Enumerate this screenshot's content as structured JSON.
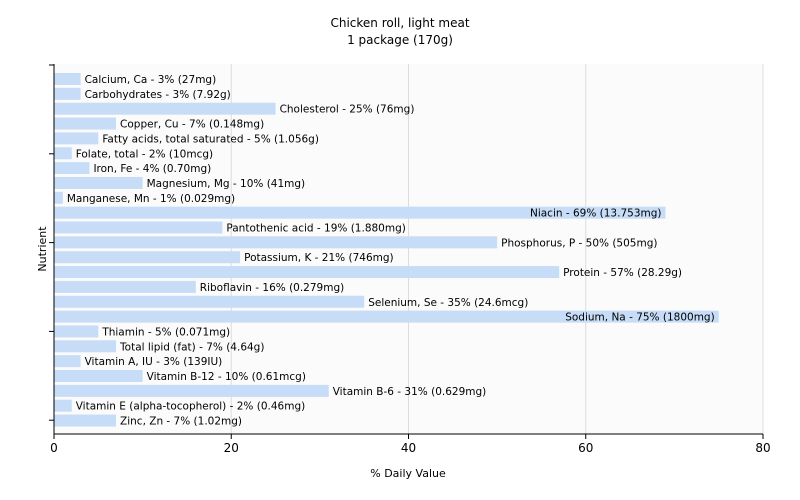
{
  "chart_data": {
    "type": "bar",
    "orientation": "horizontal",
    "title": "Chicken roll, light meat",
    "subtitle": "1 package (170g)",
    "xlabel": "% Daily Value",
    "ylabel": "Nutrient",
    "xlim": [
      0,
      80
    ],
    "xticks": [
      "0",
      "20",
      "40",
      "60",
      "80"
    ],
    "grid": true,
    "bar_color": "#c6dcf7",
    "categories": [
      "Calcium, Ca",
      "Carbohydrates",
      "Cholesterol",
      "Copper, Cu",
      "Fatty acids, total saturated",
      "Folate, total",
      "Iron, Fe",
      "Magnesium, Mg",
      "Manganese, Mn",
      "Niacin",
      "Pantothenic acid",
      "Phosphorus, P",
      "Potassium, K",
      "Protein",
      "Riboflavin",
      "Selenium, Se",
      "Sodium, Na",
      "Thiamin",
      "Total lipid (fat)",
      "Vitamin A, IU",
      "Vitamin B-12",
      "Vitamin B-6",
      "Vitamin E (alpha-tocopherol)",
      "Zinc, Zn"
    ],
    "values": [
      3,
      3,
      25,
      7,
      5,
      2,
      4,
      10,
      1,
      69,
      19,
      50,
      21,
      57,
      16,
      35,
      75,
      5,
      7,
      3,
      10,
      31,
      2,
      7
    ],
    "labels": [
      "Calcium, Ca - 3% (27mg)",
      "Carbohydrates - 3% (7.92g)",
      "Cholesterol - 25% (76mg)",
      "Copper, Cu - 7% (0.148mg)",
      "Fatty acids, total saturated - 5% (1.056g)",
      "Folate, total - 2% (10mcg)",
      "Iron, Fe - 4% (0.70mg)",
      "Magnesium, Mg - 10% (41mg)",
      "Manganese, Mn - 1% (0.029mg)",
      "Niacin - 69% (13.753mg)",
      "Pantothenic acid - 19% (1.880mg)",
      "Phosphorus, P - 50% (505mg)",
      "Potassium, K - 21% (746mg)",
      "Protein - 57% (28.29g)",
      "Riboflavin - 16% (0.279mg)",
      "Selenium, Se - 35% (24.6mcg)",
      "Sodium, Na - 75% (1800mg)",
      "Thiamin - 5% (0.071mg)",
      "Total lipid (fat) - 7% (4.64g)",
      "Vitamin A, IU - 3% (139IU)",
      "Vitamin B-12 - 10% (0.61mcg)",
      "Vitamin B-6 - 31% (0.629mg)",
      "Vitamin E (alpha-tocopherol) - 2% (0.46mg)",
      "Zinc, Zn - 7% (1.02mg)"
    ]
  }
}
